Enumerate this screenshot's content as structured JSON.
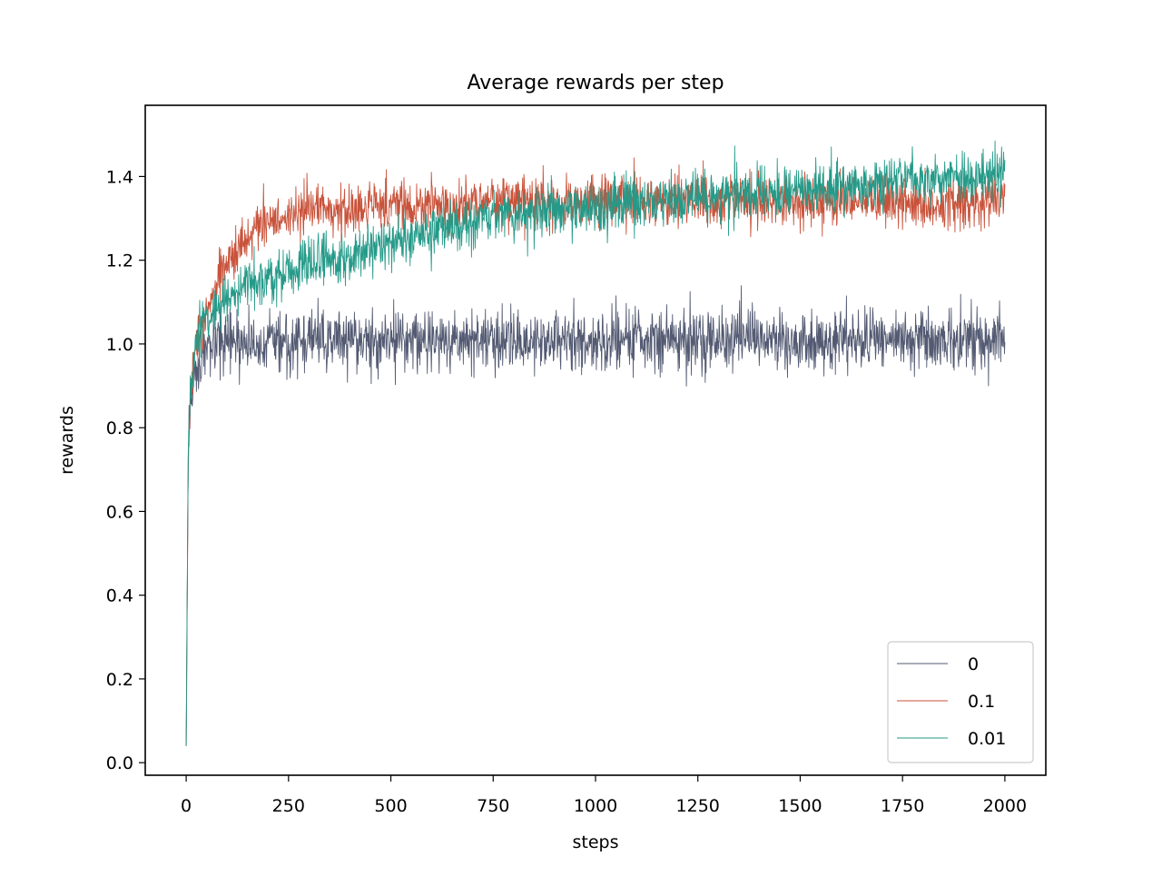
{
  "chart_data": {
    "type": "line",
    "title": "Average rewards per step",
    "xlabel": "steps",
    "ylabel": "rewards",
    "xlim": [
      -100,
      2100
    ],
    "ylim": [
      -0.03,
      1.57
    ],
    "xticks": [
      0,
      250,
      500,
      750,
      1000,
      1250,
      1500,
      1750,
      2000
    ],
    "yticks": [
      0.0,
      0.2,
      0.4,
      0.6,
      0.8,
      1.0,
      1.2,
      1.4
    ],
    "ytick_labels": [
      "0.0",
      "0.2",
      "0.4",
      "0.6",
      "0.8",
      "1.0",
      "1.2",
      "1.4"
    ],
    "grid": false,
    "legend_position": "lower-right",
    "series": [
      {
        "name": "0",
        "color": "#535a72",
        "x": [
          0,
          5,
          10,
          20,
          30,
          50,
          75,
          100,
          150,
          200,
          300,
          500,
          750,
          1000,
          1250,
          1500,
          1750,
          2000
        ],
        "y": [
          0.04,
          0.75,
          0.87,
          0.92,
          0.95,
          0.98,
          0.99,
          1.0,
          1.0,
          1.0,
          1.01,
          1.01,
          1.01,
          1.01,
          1.01,
          1.01,
          1.01,
          1.01
        ],
        "noise": 0.035
      },
      {
        "name": "0.1",
        "color": "#c9523a",
        "x": [
          0,
          5,
          10,
          20,
          30,
          50,
          75,
          100,
          150,
          200,
          250,
          300,
          400,
          500,
          750,
          1000,
          1250,
          1500,
          1750,
          2000
        ],
        "y": [
          0.04,
          0.72,
          0.88,
          0.97,
          1.02,
          1.09,
          1.15,
          1.2,
          1.26,
          1.29,
          1.31,
          1.32,
          1.32,
          1.33,
          1.34,
          1.34,
          1.34,
          1.34,
          1.34,
          1.34
        ],
        "noise": 0.03
      },
      {
        "name": "0.01",
        "color": "#259a89",
        "x": [
          0,
          5,
          10,
          20,
          30,
          50,
          75,
          100,
          150,
          200,
          300,
          400,
          500,
          600,
          700,
          800,
          1000,
          1250,
          1500,
          1750,
          2000
        ],
        "y": [
          0.04,
          0.75,
          0.9,
          0.98,
          1.03,
          1.06,
          1.09,
          1.11,
          1.14,
          1.16,
          1.19,
          1.21,
          1.24,
          1.27,
          1.29,
          1.31,
          1.33,
          1.35,
          1.37,
          1.39,
          1.41
        ],
        "noise": 0.03
      }
    ]
  }
}
